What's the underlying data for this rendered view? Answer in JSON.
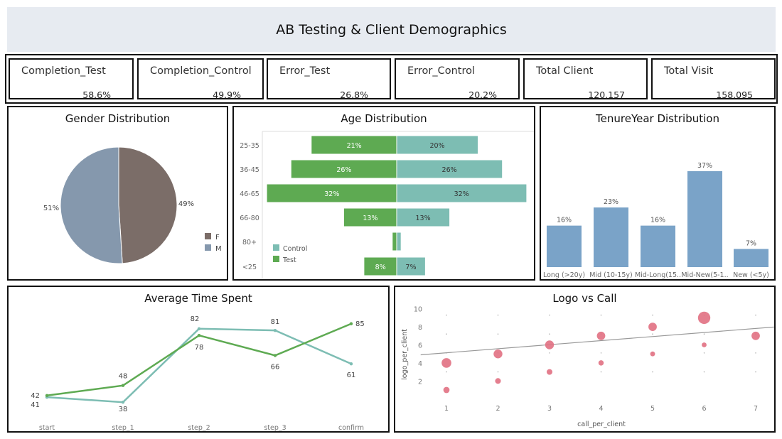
{
  "header": {
    "title": "AB Testing & Client Demographics"
  },
  "kpis": [
    {
      "label": "Completion_Test",
      "value": "58.6%"
    },
    {
      "label": "Completion_Control",
      "value": "49.9%"
    },
    {
      "label": "Error_Test",
      "value": "26.8%"
    },
    {
      "label": "Error_Control",
      "value": "20.2%"
    },
    {
      "label": "Total Client",
      "value": "120,157"
    },
    {
      "label": "Total Visit",
      "value": "158,095"
    }
  ],
  "gender": {
    "title": "Gender Distribution",
    "chart_data": {
      "type": "pie",
      "title": "Gender Distribution",
      "slices": [
        {
          "name": "F",
          "value": 49,
          "label": "49%",
          "color": "#7b6d68"
        },
        {
          "name": "M",
          "value": 51,
          "label": "51%",
          "color": "#8598ad"
        }
      ],
      "legend": [
        "F",
        "M"
      ]
    }
  },
  "age": {
    "title": "Age Distribution",
    "chart_data": {
      "type": "bar",
      "orientation": "horizontal-diverging",
      "title": "Age Distribution",
      "categories": [
        "25-35",
        "36-45",
        "46-65",
        "66-80",
        "80+",
        "<25"
      ],
      "series": [
        {
          "name": "Test",
          "values": [
            21,
            26,
            32,
            13,
            1,
            8
          ],
          "labels": [
            "21%",
            "26%",
            "32%",
            "13%",
            "",
            "8%"
          ],
          "color": "#5eaa52"
        },
        {
          "name": "Control",
          "values": [
            20,
            26,
            32,
            13,
            1,
            7
          ],
          "labels": [
            "20%",
            "26%",
            "32%",
            "13%",
            "",
            "7%"
          ],
          "color": "#7dbdb3"
        }
      ],
      "legend": [
        "Control",
        "Test"
      ]
    }
  },
  "tenure": {
    "title": "TenureYear Distribution",
    "chart_data": {
      "type": "bar",
      "title": "TenureYear Distribution",
      "categories": [
        "Long (>20y)",
        "Mid (10-15y)",
        "Mid-Long(15..",
        "Mid-New(5-1..",
        "New (<5y)"
      ],
      "values": [
        16,
        23,
        16,
        37,
        7
      ],
      "labels": [
        "16%",
        "23%",
        "16%",
        "37%",
        "7%"
      ],
      "ylim": [
        0,
        40
      ],
      "color": "#7aa3c8"
    }
  },
  "time": {
    "title": "Average Time Spent",
    "chart_data": {
      "type": "line",
      "title": "Average Time Spent",
      "categories": [
        "start",
        "step_1",
        "step_2",
        "step_3",
        "confirm"
      ],
      "series": [
        {
          "name": "Control",
          "values": [
            41,
            38,
            82,
            81,
            61
          ],
          "color": "#7dbdb3"
        },
        {
          "name": "Test",
          "values": [
            42,
            48,
            78,
            66,
            85
          ],
          "color": "#5eaa52"
        }
      ],
      "ylim": [
        30,
        90
      ]
    }
  },
  "logo": {
    "title": "Logo vs Call",
    "chart_data": {
      "type": "scatter",
      "title": "Logo vs Call",
      "xlabel": "call_per_client",
      "ylabel": "logo_per_client",
      "x_ticks": [
        1,
        2,
        3,
        4,
        5,
        6,
        7
      ],
      "y_ticks": [
        2,
        4,
        6,
        8,
        10
      ],
      "xlim": [
        0.5,
        7.4
      ],
      "ylim": [
        0,
        10.5
      ],
      "points": [
        {
          "x": 1,
          "y": 1,
          "size": 1.4
        },
        {
          "x": 1,
          "y": 4,
          "size": 2.2
        },
        {
          "x": 2,
          "y": 2,
          "size": 1.3
        },
        {
          "x": 2,
          "y": 5,
          "size": 2.0
        },
        {
          "x": 3,
          "y": 3,
          "size": 1.3
        },
        {
          "x": 3,
          "y": 6,
          "size": 2.0
        },
        {
          "x": 4,
          "y": 4,
          "size": 1.2
        },
        {
          "x": 4,
          "y": 7,
          "size": 1.9
        },
        {
          "x": 5,
          "y": 5,
          "size": 1.1
        },
        {
          "x": 5,
          "y": 8,
          "size": 1.9
        },
        {
          "x": 6,
          "y": 6,
          "size": 1.1
        },
        {
          "x": 6,
          "y": 9,
          "size": 2.8
        },
        {
          "x": 7,
          "y": 7,
          "size": 1.9
        }
      ],
      "trendline": {
        "x": [
          0.5,
          7.4
        ],
        "y": [
          4.9,
          8.0
        ]
      },
      "marker_color": "#e17082"
    }
  }
}
